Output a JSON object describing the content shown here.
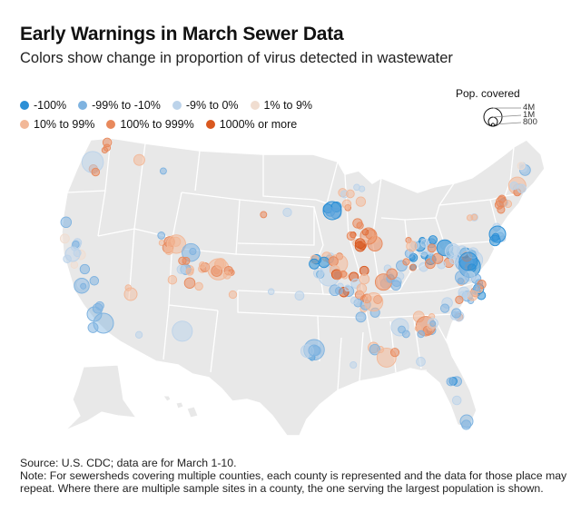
{
  "title": "Early Warnings in March Sewer Data",
  "subtitle": "Colors show change in proportion of virus detected in wastewater",
  "legend": {
    "categories": [
      {
        "label": "-100%",
        "color": "#2b8fd6"
      },
      {
        "label": "-99% to -10%",
        "color": "#7fb3e0"
      },
      {
        "label": "-9% to 0%",
        "color": "#bcd3ea"
      },
      {
        "label": "1% to 9%",
        "color": "#f0ddd0"
      },
      {
        "label": "10% to 99%",
        "color": "#f2b898"
      },
      {
        "label": "100% to 999%",
        "color": "#e8895c"
      },
      {
        "label": "1000% or more",
        "color": "#d9581f"
      }
    ]
  },
  "pop_legend": {
    "title": "Pop. covered",
    "sizes": [
      {
        "label": "4M",
        "value": 4000000
      },
      {
        "label": "1M",
        "value": 1000000
      },
      {
        "label": "800",
        "value": 800
      }
    ]
  },
  "footer": {
    "source": "Source: U.S. CDC; data are for March 1-10.",
    "note": "Note: For sewersheds covering multiple counties, each county is represented and the data for those place may repeat. Where there are multiple sample sites in a county, the one serving the largest population is shown."
  }
}
